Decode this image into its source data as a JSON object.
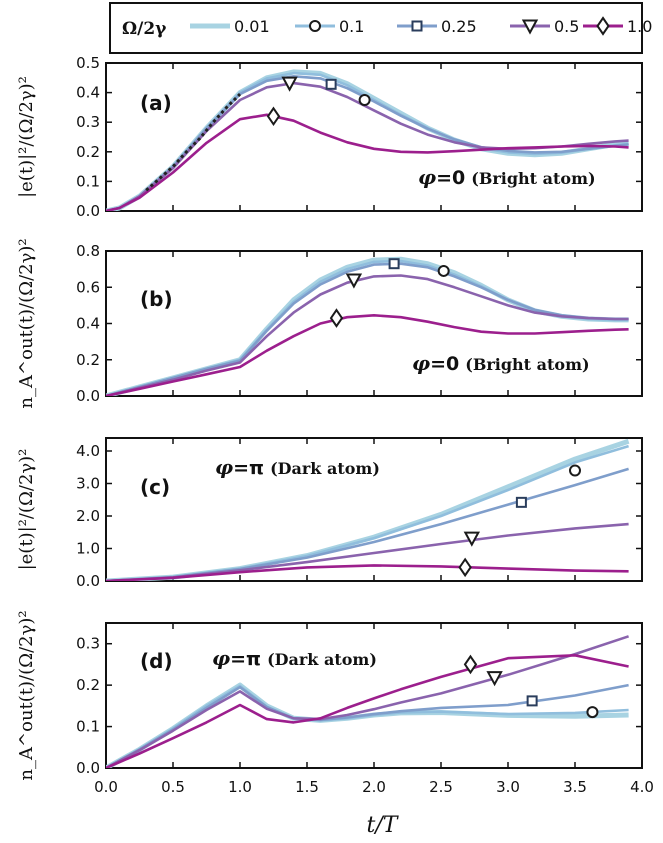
{
  "chart_data": {
    "type": "line",
    "xlabel": "t/T",
    "legend": {
      "title": "Ω/2γ",
      "placement": "top",
      "entries": [
        {
          "label": "0.01",
          "color": "#a8d3e2",
          "marker": "none"
        },
        {
          "label": "0.1",
          "color": "#90bedd",
          "marker": "circle"
        },
        {
          "label": "0.25",
          "color": "#7f9ecb",
          "marker": "square"
        },
        {
          "label": "0.5",
          "color": "#8a63ad",
          "marker": "triangle-down"
        },
        {
          "label": "1.0",
          "color": "#9c1f8d",
          "marker": "diamond"
        }
      ]
    },
    "x_axis": {
      "range": [
        0.0,
        4.0
      ],
      "ticks": [
        "0.0",
        "0.5",
        "1.0",
        "1.5",
        "2.0",
        "2.5",
        "3.0",
        "3.5",
        "4.0"
      ]
    },
    "panels": [
      {
        "label": "(a)",
        "annotation": {
          "phi": "φ",
          "eq": "=0",
          "text": "(Bright atom)"
        },
        "ylabel": "|e(t)|²/(Ω/2γ)²",
        "ylim": [
          0.0,
          0.5
        ],
        "yticks": [
          "0.0",
          "0.1",
          "0.2",
          "0.3",
          "0.4",
          "0.5"
        ],
        "series": [
          {
            "name": "0.01",
            "x": [
              0,
              0.1,
              0.25,
              0.5,
              0.75,
              1.0,
              1.2,
              1.4,
              1.6,
              1.8,
              2.0,
              2.2,
              2.4,
              2.6,
              2.8,
              3.0,
              3.2,
              3.4,
              3.6,
              3.8,
              3.9
            ],
            "y": [
              0,
              0.01,
              0.05,
              0.15,
              0.28,
              0.4,
              0.45,
              0.47,
              0.465,
              0.43,
              0.38,
              0.33,
              0.28,
              0.24,
              0.21,
              0.195,
              0.19,
              0.195,
              0.21,
              0.225,
              0.23
            ]
          },
          {
            "name": "0.1",
            "x": [
              0,
              0.1,
              0.25,
              0.5,
              0.75,
              1.0,
              1.2,
              1.4,
              1.6,
              1.8,
              2.0,
              2.2,
              2.4,
              2.6,
              2.8,
              3.0,
              3.2,
              3.4,
              3.6,
              3.8,
              3.9
            ],
            "y": [
              0,
              0.01,
              0.05,
              0.15,
              0.28,
              0.4,
              0.448,
              0.466,
              0.46,
              0.425,
              0.375,
              0.325,
              0.28,
              0.24,
              0.212,
              0.198,
              0.193,
              0.197,
              0.21,
              0.222,
              0.228
            ]
          },
          {
            "name": "0.25",
            "x": [
              0,
              0.1,
              0.25,
              0.5,
              0.75,
              1.0,
              1.2,
              1.4,
              1.6,
              1.8,
              2.0,
              2.2,
              2.4,
              2.6,
              2.8,
              3.0,
              3.2,
              3.4,
              3.6,
              3.8,
              3.9
            ],
            "y": [
              0,
              0.01,
              0.05,
              0.15,
              0.28,
              0.395,
              0.44,
              0.455,
              0.448,
              0.415,
              0.37,
              0.322,
              0.278,
              0.242,
              0.216,
              0.203,
              0.198,
              0.2,
              0.21,
              0.22,
              0.225
            ]
          },
          {
            "name": "0.5",
            "x": [
              0,
              0.1,
              0.25,
              0.5,
              0.75,
              1.0,
              1.2,
              1.4,
              1.6,
              1.8,
              2.0,
              2.2,
              2.4,
              2.6,
              2.8,
              3.0,
              3.2,
              3.4,
              3.6,
              3.8,
              3.9
            ],
            "y": [
              0,
              0.01,
              0.05,
              0.145,
              0.27,
              0.375,
              0.418,
              0.432,
              0.42,
              0.385,
              0.34,
              0.295,
              0.258,
              0.232,
              0.215,
              0.21,
              0.212,
              0.218,
              0.227,
              0.235,
              0.238
            ]
          },
          {
            "name": "1.0",
            "x": [
              0,
              0.1,
              0.25,
              0.5,
              0.75,
              1.0,
              1.2,
              1.4,
              1.6,
              1.8,
              2.0,
              2.2,
              2.4,
              2.6,
              2.8,
              3.0,
              3.2,
              3.4,
              3.6,
              3.8,
              3.9
            ],
            "y": [
              0,
              0.01,
              0.045,
              0.13,
              0.23,
              0.31,
              0.325,
              0.305,
              0.265,
              0.232,
              0.21,
              0.2,
              0.198,
              0.202,
              0.207,
              0.212,
              0.215,
              0.218,
              0.22,
              0.218,
              0.215
            ]
          }
        ],
        "markers": [
          {
            "series": "1.0",
            "x": 1.25,
            "y": 0.32
          },
          {
            "series": "0.5",
            "x": 1.37,
            "y": 0.432
          },
          {
            "series": "0.25",
            "x": 1.68,
            "y": 0.428
          },
          {
            "series": "0.1",
            "x": 1.93,
            "y": 0.375
          }
        ],
        "extra": {
          "name": "dashed",
          "x": [
            0.3,
            0.4,
            0.5,
            0.6,
            0.7,
            0.8,
            0.9,
            1.0
          ],
          "y": [
            0.07,
            0.11,
            0.15,
            0.2,
            0.245,
            0.3,
            0.35,
            0.395
          ]
        }
      },
      {
        "label": "(b)",
        "annotation": {
          "phi": "φ",
          "eq": "=0",
          "text": "(Bright atom)"
        },
        "ylabel": "n_A^out(t)/(Ω/2γ)²",
        "ylim": [
          0.0,
          0.8
        ],
        "yticks": [
          "0.0",
          "0.2",
          "0.4",
          "0.6",
          "0.8"
        ],
        "series": [
          {
            "name": "0.01",
            "x": [
              0,
              0.25,
              0.5,
              0.75,
              1.0,
              1.2,
              1.4,
              1.6,
              1.8,
              2.0,
              2.2,
              2.4,
              2.6,
              2.8,
              3.0,
              3.2,
              3.4,
              3.6,
              3.8,
              3.9
            ],
            "y": [
              0,
              0.05,
              0.1,
              0.15,
              0.2,
              0.37,
              0.53,
              0.64,
              0.71,
              0.75,
              0.755,
              0.73,
              0.68,
              0.61,
              0.53,
              0.47,
              0.44,
              0.425,
              0.42,
              0.42
            ]
          },
          {
            "name": "0.1",
            "x": [
              0,
              0.25,
              0.5,
              0.75,
              1.0,
              1.2,
              1.4,
              1.6,
              1.8,
              2.0,
              2.2,
              2.4,
              2.6,
              2.8,
              3.0,
              3.2,
              3.4,
              3.6,
              3.8,
              3.9
            ],
            "y": [
              0,
              0.05,
              0.1,
              0.15,
              0.2,
              0.365,
              0.52,
              0.63,
              0.7,
              0.74,
              0.745,
              0.72,
              0.67,
              0.605,
              0.53,
              0.47,
              0.44,
              0.425,
              0.42,
              0.42
            ]
          },
          {
            "name": "0.25",
            "x": [
              0,
              0.25,
              0.5,
              0.75,
              1.0,
              1.2,
              1.4,
              1.6,
              1.8,
              2.0,
              2.2,
              2.4,
              2.6,
              2.8,
              3.0,
              3.2,
              3.4,
              3.6,
              3.8,
              3.9
            ],
            "y": [
              0,
              0.05,
              0.1,
              0.15,
              0.195,
              0.36,
              0.51,
              0.615,
              0.685,
              0.725,
              0.73,
              0.71,
              0.66,
              0.6,
              0.53,
              0.475,
              0.445,
              0.43,
              0.425,
              0.425
            ]
          },
          {
            "name": "0.5",
            "x": [
              0,
              0.25,
              0.5,
              0.75,
              1.0,
              1.2,
              1.4,
              1.6,
              1.8,
              2.0,
              2.2,
              2.4,
              2.6,
              2.8,
              3.0,
              3.2,
              3.4,
              3.6,
              3.8,
              3.9
            ],
            "y": [
              0,
              0.045,
              0.09,
              0.14,
              0.185,
              0.33,
              0.46,
              0.56,
              0.625,
              0.66,
              0.665,
              0.645,
              0.6,
              0.55,
              0.5,
              0.46,
              0.44,
              0.43,
              0.425,
              0.425
            ]
          },
          {
            "name": "1.0",
            "x": [
              0,
              0.25,
              0.5,
              0.75,
              1.0,
              1.2,
              1.4,
              1.6,
              1.8,
              2.0,
              2.2,
              2.4,
              2.6,
              2.8,
              3.0,
              3.2,
              3.4,
              3.6,
              3.8,
              3.9
            ],
            "y": [
              0,
              0.04,
              0.08,
              0.12,
              0.16,
              0.25,
              0.33,
              0.4,
              0.435,
              0.445,
              0.435,
              0.41,
              0.38,
              0.355,
              0.345,
              0.345,
              0.352,
              0.36,
              0.366,
              0.368
            ]
          }
        ],
        "markers": [
          {
            "series": "1.0",
            "x": 1.72,
            "y": 0.43
          },
          {
            "series": "0.5",
            "x": 1.85,
            "y": 0.64
          },
          {
            "series": "0.25",
            "x": 2.15,
            "y": 0.73
          },
          {
            "series": "0.1",
            "x": 2.52,
            "y": 0.69
          }
        ]
      },
      {
        "label": "(c)",
        "annotation": {
          "phi": "φ",
          "eq": "=π",
          "text": "(Dark atom)"
        },
        "ylabel": "|e(t)|²/(Ω/2γ)²",
        "ylim": [
          0.0,
          4.4
        ],
        "yticks": [
          "0.0",
          "1.0",
          "2.0",
          "3.0",
          "4.0"
        ],
        "series": [
          {
            "name": "0.01",
            "x": [
              0,
              0.5,
              1.0,
              1.5,
              2.0,
              2.5,
              3.0,
              3.5,
              3.9
            ],
            "y": [
              0,
              0.12,
              0.38,
              0.78,
              1.35,
              2.05,
              2.9,
              3.75,
              4.3
            ]
          },
          {
            "name": "0.1",
            "x": [
              0,
              0.5,
              1.0,
              1.5,
              2.0,
              2.5,
              3.0,
              3.5,
              3.9
            ],
            "y": [
              0,
              0.12,
              0.38,
              0.77,
              1.32,
              2.0,
              2.8,
              3.65,
              4.15
            ]
          },
          {
            "name": "0.25",
            "x": [
              0,
              0.5,
              1.0,
              1.5,
              2.0,
              2.5,
              3.0,
              3.5,
              3.9
            ],
            "y": [
              0,
              0.12,
              0.37,
              0.72,
              1.2,
              1.75,
              2.35,
              2.95,
              3.45
            ]
          },
          {
            "name": "0.5",
            "x": [
              0,
              0.5,
              1.0,
              1.5,
              2.0,
              2.5,
              3.0,
              3.5,
              3.9
            ],
            "y": [
              0,
              0.11,
              0.33,
              0.58,
              0.86,
              1.14,
              1.4,
              1.62,
              1.75
            ]
          },
          {
            "name": "1.0",
            "x": [
              0,
              0.5,
              1.0,
              1.5,
              2.0,
              2.5,
              3.0,
              3.5,
              3.9
            ],
            "y": [
              0,
              0.1,
              0.27,
              0.42,
              0.48,
              0.45,
              0.38,
              0.32,
              0.3
            ]
          }
        ],
        "markers": [
          {
            "series": "1.0",
            "x": 2.68,
            "y": 0.42
          },
          {
            "series": "0.5",
            "x": 2.73,
            "y": 1.32
          },
          {
            "series": "0.25",
            "x": 3.1,
            "y": 2.42
          },
          {
            "series": "0.1",
            "x": 3.5,
            "y": 3.4
          }
        ]
      },
      {
        "label": "(d)",
        "annotation": {
          "phi": "φ",
          "eq": "=π",
          "text": "(Dark atom)"
        },
        "ylabel": "n_A^out(t)/(Ω/2γ)²",
        "ylim": [
          0.0,
          0.35
        ],
        "yticks": [
          "0.0",
          "0.1",
          "0.2",
          "0.3"
        ],
        "series": [
          {
            "name": "0.01",
            "x": [
              0,
              0.25,
              0.5,
              0.75,
              1.0,
              1.2,
              1.4,
              1.6,
              1.8,
              2.0,
              2.2,
              2.5,
              3.0,
              3.5,
              3.9
            ],
            "y": [
              0,
              0.045,
              0.095,
              0.15,
              0.2,
              0.15,
              0.12,
              0.115,
              0.12,
              0.128,
              0.133,
              0.134,
              0.127,
              0.125,
              0.128
            ]
          },
          {
            "name": "0.1",
            "x": [
              0,
              0.25,
              0.5,
              0.75,
              1.0,
              1.2,
              1.4,
              1.6,
              1.8,
              2.0,
              2.2,
              2.5,
              3.0,
              3.5,
              3.9
            ],
            "y": [
              0,
              0.045,
              0.095,
              0.15,
              0.198,
              0.148,
              0.12,
              0.115,
              0.12,
              0.128,
              0.134,
              0.136,
              0.13,
              0.133,
              0.14
            ]
          },
          {
            "name": "0.25",
            "x": [
              0,
              0.25,
              0.5,
              0.75,
              1.0,
              1.2,
              1.4,
              1.6,
              1.8,
              2.0,
              2.2,
              2.5,
              3.0,
              3.5,
              3.9
            ],
            "y": [
              0,
              0.045,
              0.093,
              0.145,
              0.195,
              0.147,
              0.12,
              0.116,
              0.122,
              0.13,
              0.137,
              0.145,
              0.152,
              0.175,
              0.2
            ]
          },
          {
            "name": "0.5",
            "x": [
              0,
              0.25,
              0.5,
              0.75,
              1.0,
              1.2,
              1.4,
              1.6,
              1.8,
              2.0,
              2.2,
              2.5,
              3.0,
              3.5,
              3.9
            ],
            "y": [
              0,
              0.043,
              0.09,
              0.14,
              0.185,
              0.143,
              0.12,
              0.118,
              0.128,
              0.142,
              0.158,
              0.18,
              0.225,
              0.275,
              0.318
            ]
          },
          {
            "name": "1.0",
            "x": [
              0,
              0.25,
              0.5,
              0.75,
              1.0,
              1.2,
              1.4,
              1.6,
              1.8,
              2.0,
              2.2,
              2.5,
              3.0,
              3.5,
              3.9
            ],
            "y": [
              0,
              0.035,
              0.072,
              0.11,
              0.152,
              0.118,
              0.11,
              0.12,
              0.145,
              0.168,
              0.19,
              0.22,
              0.265,
              0.272,
              0.245
            ]
          }
        ],
        "markers": [
          {
            "series": "1.0",
            "x": 2.72,
            "y": 0.25
          },
          {
            "series": "0.5",
            "x": 2.9,
            "y": 0.218
          },
          {
            "series": "0.25",
            "x": 3.18,
            "y": 0.162
          },
          {
            "series": "0.1",
            "x": 3.63,
            "y": 0.135
          }
        ]
      }
    ]
  }
}
